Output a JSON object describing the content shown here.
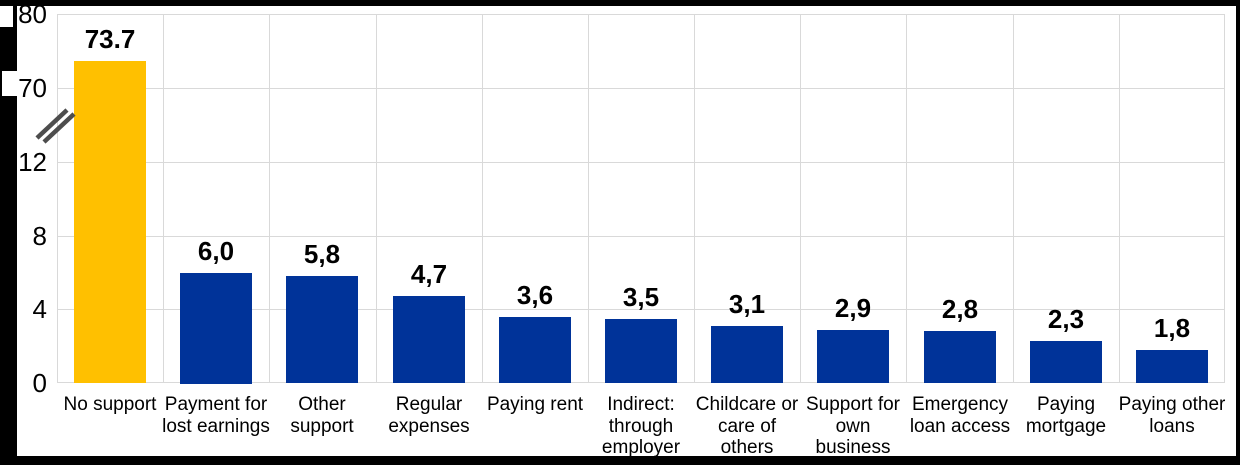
{
  "canvas": {
    "background": "#000000",
    "panel": "#FFFFFF"
  },
  "chart_data": {
    "type": "bar",
    "title": "",
    "xlabel": "",
    "ylabel": "",
    "grid": true,
    "legend": null,
    "axis_break": true,
    "ylim_lower": [
      0,
      12
    ],
    "ylim_upper": [
      70,
      80
    ],
    "yticks_lower": [
      0,
      4,
      8,
      12
    ],
    "yticks_upper": [
      70,
      80
    ],
    "categories": [
      "No support",
      "Payment for lost earnings",
      "Other support",
      "Regular expenses",
      "Paying rent",
      "Indirect: through employer",
      "Childcare or care of others",
      "Support for own business",
      "Emergency loan access",
      "Paying mortgage",
      "Paying other loans"
    ],
    "category_lines": [
      [
        "No support"
      ],
      [
        "Payment for",
        "lost earnings"
      ],
      [
        "Other",
        "support"
      ],
      [
        "Regular",
        "expenses"
      ],
      [
        "Paying rent"
      ],
      [
        "Indirect:",
        "through",
        "employer"
      ],
      [
        "Childcare or",
        "care of",
        "others"
      ],
      [
        "Support for",
        "own",
        "business"
      ],
      [
        "Emergency",
        "loan access"
      ],
      [
        "Paying",
        "mortgage"
      ],
      [
        "Paying other",
        "loans"
      ]
    ],
    "values": [
      73.7,
      6.0,
      5.8,
      4.7,
      3.6,
      3.5,
      3.1,
      2.9,
      2.8,
      2.3,
      1.8
    ],
    "value_labels": [
      "73.7",
      "6,0",
      "5,8",
      "4,7",
      "3,6",
      "3,5",
      "3,1",
      "2,9",
      "2,8",
      "2,3",
      "1,8"
    ],
    "highlight_index": 0,
    "colors": {
      "highlight_bar": "#FFC000",
      "bar": "#003399",
      "gridline": "#D9D9D9",
      "axis_break_mark": "#4D4D4D",
      "text": "#000000"
    }
  }
}
